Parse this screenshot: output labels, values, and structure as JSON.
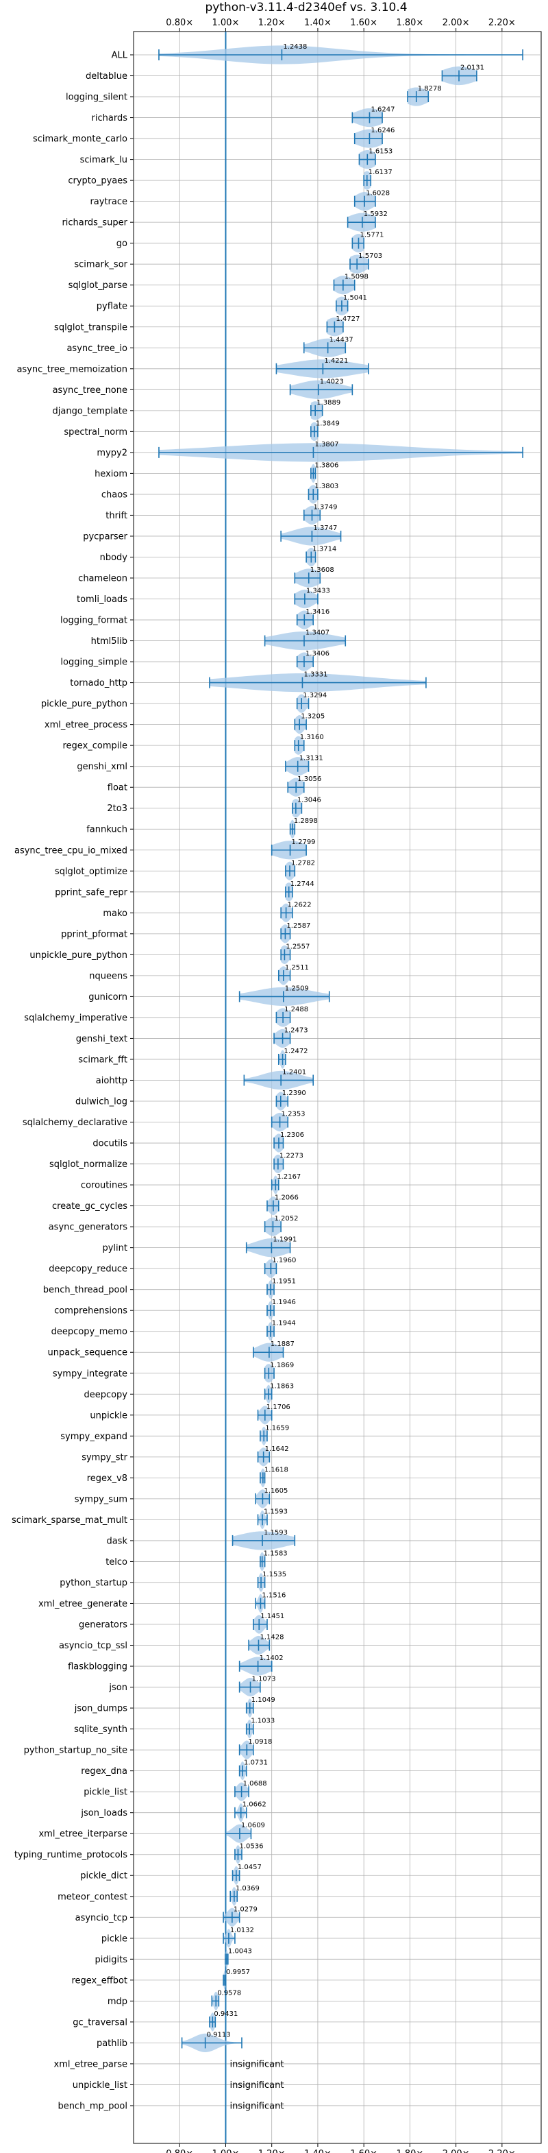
{
  "chart_data": {
    "type": "violin",
    "title": "python-v3.11.4-d2340ef vs. 3.10.4",
    "xlabel": "",
    "ylabel": "",
    "xlim": [
      0.6,
      2.37
    ],
    "x_ticks": [
      0.8,
      1.0,
      1.2,
      1.4,
      1.6,
      1.8,
      2.0,
      2.2
    ],
    "x_tick_labels": [
      "0.80×",
      "1.00×",
      "1.20×",
      "1.40×",
      "1.60×",
      "1.80×",
      "2.00×",
      "2.20×"
    ],
    "reference_line": 1.0,
    "grid": true,
    "colors": {
      "violin": "#a6c8e8",
      "whisker": "#1f77b4",
      "refline": "#1f77b4",
      "grid": "#b0b0b0"
    },
    "insignificant_text": "insignificant",
    "benchmarks": [
      {
        "name": "ALL",
        "value": 1.2438,
        "label": "1.2438",
        "min": 0.71,
        "max": 2.29,
        "spread": 0.25
      },
      {
        "name": "deltablue",
        "value": 2.0131,
        "label": "2.0131",
        "min": 1.94,
        "max": 2.09,
        "spread": 0.07
      },
      {
        "name": "logging_silent",
        "value": 1.8278,
        "label": "1.8278",
        "min": 1.79,
        "max": 1.88,
        "spread": 0.05
      },
      {
        "name": "richards",
        "value": 1.6247,
        "label": "1.6247",
        "min": 1.55,
        "max": 1.68,
        "spread": 0.06
      },
      {
        "name": "scimark_monte_carlo",
        "value": 1.6246,
        "label": "1.6246",
        "min": 1.56,
        "max": 1.68,
        "spread": 0.06
      },
      {
        "name": "scimark_lu",
        "value": 1.6153,
        "label": "1.6153",
        "min": 1.58,
        "max": 1.65,
        "spread": 0.04
      },
      {
        "name": "crypto_pyaes",
        "value": 1.6137,
        "label": "1.6137",
        "min": 1.6,
        "max": 1.63,
        "spread": 0.02
      },
      {
        "name": "raytrace",
        "value": 1.6028,
        "label": "1.6028",
        "min": 1.56,
        "max": 1.65,
        "spread": 0.04
      },
      {
        "name": "richards_super",
        "value": 1.5932,
        "label": "1.5932",
        "min": 1.53,
        "max": 1.65,
        "spread": 0.06
      },
      {
        "name": "go",
        "value": 1.5771,
        "label": "1.5771",
        "min": 1.55,
        "max": 1.6,
        "spread": 0.03
      },
      {
        "name": "scimark_sor",
        "value": 1.5703,
        "label": "1.5703",
        "min": 1.54,
        "max": 1.62,
        "spread": 0.04
      },
      {
        "name": "sqlglot_parse",
        "value": 1.5098,
        "label": "1.5098",
        "min": 1.47,
        "max": 1.56,
        "spread": 0.04
      },
      {
        "name": "pyflate",
        "value": 1.5041,
        "label": "1.5041",
        "min": 1.48,
        "max": 1.53,
        "spread": 0.03
      },
      {
        "name": "sqlglot_transpile",
        "value": 1.4727,
        "label": "1.4727",
        "min": 1.44,
        "max": 1.51,
        "spread": 0.04
      },
      {
        "name": "async_tree_io",
        "value": 1.4437,
        "label": "1.4437",
        "min": 1.34,
        "max": 1.52,
        "spread": 0.07
      },
      {
        "name": "async_tree_memoization",
        "value": 1.4221,
        "label": "1.4221",
        "min": 1.22,
        "max": 1.62,
        "spread": 0.14
      },
      {
        "name": "async_tree_none",
        "value": 1.4023,
        "label": "1.4023",
        "min": 1.28,
        "max": 1.55,
        "spread": 0.09
      },
      {
        "name": "django_template",
        "value": 1.3889,
        "label": "1.3889",
        "min": 1.37,
        "max": 1.42,
        "spread": 0.03
      },
      {
        "name": "spectral_norm",
        "value": 1.3849,
        "label": "1.3849",
        "min": 1.37,
        "max": 1.4,
        "spread": 0.02
      },
      {
        "name": "mypy2",
        "value": 1.3807,
        "label": "1.3807",
        "min": 0.71,
        "max": 2.29,
        "spread": 0.4
      },
      {
        "name": "hexiom",
        "value": 1.3806,
        "label": "1.3806",
        "min": 1.37,
        "max": 1.39,
        "spread": 0.01
      },
      {
        "name": "chaos",
        "value": 1.3803,
        "label": "1.3803",
        "min": 1.36,
        "max": 1.4,
        "spread": 0.02
      },
      {
        "name": "thrift",
        "value": 1.3749,
        "label": "1.3749",
        "min": 1.34,
        "max": 1.41,
        "spread": 0.03
      },
      {
        "name": "pycparser",
        "value": 1.3747,
        "label": "1.3747",
        "min": 1.24,
        "max": 1.5,
        "spread": 0.08
      },
      {
        "name": "nbody",
        "value": 1.3714,
        "label": "1.3714",
        "min": 1.35,
        "max": 1.39,
        "spread": 0.02
      },
      {
        "name": "chameleon",
        "value": 1.3608,
        "label": "1.3608",
        "min": 1.3,
        "max": 1.41,
        "spread": 0.05
      },
      {
        "name": "tomli_loads",
        "value": 1.3433,
        "label": "1.3433",
        "min": 1.3,
        "max": 1.4,
        "spread": 0.04
      },
      {
        "name": "logging_format",
        "value": 1.3416,
        "label": "1.3416",
        "min": 1.31,
        "max": 1.38,
        "spread": 0.03
      },
      {
        "name": "html5lib",
        "value": 1.3407,
        "label": "1.3407",
        "min": 1.17,
        "max": 1.52,
        "spread": 0.12
      },
      {
        "name": "logging_simple",
        "value": 1.3406,
        "label": "1.3406",
        "min": 1.31,
        "max": 1.38,
        "spread": 0.03
      },
      {
        "name": "tornado_http",
        "value": 1.3331,
        "label": "1.3331",
        "min": 0.93,
        "max": 1.87,
        "spread": 0.28
      },
      {
        "name": "pickle_pure_python",
        "value": 1.3294,
        "label": "1.3294",
        "min": 1.31,
        "max": 1.36,
        "spread": 0.02
      },
      {
        "name": "xml_etree_process",
        "value": 1.3205,
        "label": "1.3205",
        "min": 1.3,
        "max": 1.35,
        "spread": 0.02
      },
      {
        "name": "regex_compile",
        "value": 1.316,
        "label": "1.3160",
        "min": 1.3,
        "max": 1.34,
        "spread": 0.02
      },
      {
        "name": "genshi_xml",
        "value": 1.3131,
        "label": "1.3131",
        "min": 1.26,
        "max": 1.36,
        "spread": 0.04
      },
      {
        "name": "float",
        "value": 1.3056,
        "label": "1.3056",
        "min": 1.27,
        "max": 1.34,
        "spread": 0.03
      },
      {
        "name": "2to3",
        "value": 1.3046,
        "label": "1.3046",
        "min": 1.29,
        "max": 1.33,
        "spread": 0.02
      },
      {
        "name": "fannkuch",
        "value": 1.2898,
        "label": "1.2898",
        "min": 1.28,
        "max": 1.3,
        "spread": 0.01
      },
      {
        "name": "async_tree_cpu_io_mixed",
        "value": 1.2799,
        "label": "1.2799",
        "min": 1.2,
        "max": 1.35,
        "spread": 0.07
      },
      {
        "name": "sqlglot_optimize",
        "value": 1.2782,
        "label": "1.2782",
        "min": 1.26,
        "max": 1.3,
        "spread": 0.02
      },
      {
        "name": "pprint_safe_repr",
        "value": 1.2744,
        "label": "1.2744",
        "min": 1.26,
        "max": 1.29,
        "spread": 0.02
      },
      {
        "name": "mako",
        "value": 1.2622,
        "label": "1.2622",
        "min": 1.24,
        "max": 1.29,
        "spread": 0.02
      },
      {
        "name": "pprint_pformat",
        "value": 1.2587,
        "label": "1.2587",
        "min": 1.24,
        "max": 1.28,
        "spread": 0.02
      },
      {
        "name": "unpickle_pure_python",
        "value": 1.2557,
        "label": "1.2557",
        "min": 1.24,
        "max": 1.28,
        "spread": 0.02
      },
      {
        "name": "nqueens",
        "value": 1.2511,
        "label": "1.2511",
        "min": 1.23,
        "max": 1.28,
        "spread": 0.02
      },
      {
        "name": "gunicorn",
        "value": 1.2509,
        "label": "1.2509",
        "min": 1.06,
        "max": 1.45,
        "spread": 0.12
      },
      {
        "name": "sqlalchemy_imperative",
        "value": 1.2488,
        "label": "1.2488",
        "min": 1.22,
        "max": 1.28,
        "spread": 0.03
      },
      {
        "name": "genshi_text",
        "value": 1.2473,
        "label": "1.2473",
        "min": 1.21,
        "max": 1.28,
        "spread": 0.03
      },
      {
        "name": "scimark_fft",
        "value": 1.2472,
        "label": "1.2472",
        "min": 1.23,
        "max": 1.26,
        "spread": 0.01
      },
      {
        "name": "aiohttp",
        "value": 1.2401,
        "label": "1.2401",
        "min": 1.08,
        "max": 1.38,
        "spread": 0.08
      },
      {
        "name": "dulwich_log",
        "value": 1.239,
        "label": "1.2390",
        "min": 1.22,
        "max": 1.27,
        "spread": 0.02
      },
      {
        "name": "sqlalchemy_declarative",
        "value": 1.2353,
        "label": "1.2353",
        "min": 1.2,
        "max": 1.27,
        "spread": 0.03
      },
      {
        "name": "docutils",
        "value": 1.2306,
        "label": "1.2306",
        "min": 1.21,
        "max": 1.25,
        "spread": 0.02
      },
      {
        "name": "sqlglot_normalize",
        "value": 1.2273,
        "label": "1.2273",
        "min": 1.21,
        "max": 1.25,
        "spread": 0.02
      },
      {
        "name": "coroutines",
        "value": 1.2167,
        "label": "1.2167",
        "min": 1.2,
        "max": 1.23,
        "spread": 0.01
      },
      {
        "name": "create_gc_cycles",
        "value": 1.2066,
        "label": "1.2066",
        "min": 1.18,
        "max": 1.23,
        "spread": 0.02
      },
      {
        "name": "async_generators",
        "value": 1.2052,
        "label": "1.2052",
        "min": 1.17,
        "max": 1.24,
        "spread": 0.03
      },
      {
        "name": "pylint",
        "value": 1.1991,
        "label": "1.1991",
        "min": 1.09,
        "max": 1.28,
        "spread": 0.07
      },
      {
        "name": "deepcopy_reduce",
        "value": 1.196,
        "label": "1.1960",
        "min": 1.17,
        "max": 1.22,
        "spread": 0.02
      },
      {
        "name": "bench_thread_pool",
        "value": 1.1951,
        "label": "1.1951",
        "min": 1.18,
        "max": 1.21,
        "spread": 0.01
      },
      {
        "name": "comprehensions",
        "value": 1.1946,
        "label": "1.1946",
        "min": 1.18,
        "max": 1.21,
        "spread": 0.01
      },
      {
        "name": "deepcopy_memo",
        "value": 1.1944,
        "label": "1.1944",
        "min": 1.18,
        "max": 1.21,
        "spread": 0.01
      },
      {
        "name": "unpack_sequence",
        "value": 1.1887,
        "label": "1.1887",
        "min": 1.12,
        "max": 1.25,
        "spread": 0.05
      },
      {
        "name": "sympy_integrate",
        "value": 1.1869,
        "label": "1.1869",
        "min": 1.17,
        "max": 1.21,
        "spread": 0.02
      },
      {
        "name": "deepcopy",
        "value": 1.1863,
        "label": "1.1863",
        "min": 1.17,
        "max": 1.2,
        "spread": 0.01
      },
      {
        "name": "unpickle",
        "value": 1.1706,
        "label": "1.1706",
        "min": 1.14,
        "max": 1.2,
        "spread": 0.02
      },
      {
        "name": "sympy_expand",
        "value": 1.1659,
        "label": "1.1659",
        "min": 1.15,
        "max": 1.18,
        "spread": 0.01
      },
      {
        "name": "sympy_str",
        "value": 1.1642,
        "label": "1.1642",
        "min": 1.14,
        "max": 1.19,
        "spread": 0.02
      },
      {
        "name": "regex_v8",
        "value": 1.1618,
        "label": "1.1618",
        "min": 1.15,
        "max": 1.17,
        "spread": 0.01
      },
      {
        "name": "sympy_sum",
        "value": 1.1605,
        "label": "1.1605",
        "min": 1.13,
        "max": 1.19,
        "spread": 0.02
      },
      {
        "name": "scimark_sparse_mat_mult",
        "value": 1.1593,
        "label": "1.1593",
        "min": 1.14,
        "max": 1.18,
        "spread": 0.01
      },
      {
        "name": "dask",
        "value": 1.1593,
        "label": "1.1593",
        "min": 1.03,
        "max": 1.3,
        "spread": 0.1
      },
      {
        "name": "telco",
        "value": 1.1583,
        "label": "1.1583",
        "min": 1.15,
        "max": 1.17,
        "spread": 0.01
      },
      {
        "name": "python_startup",
        "value": 1.1535,
        "label": "1.1535",
        "min": 1.14,
        "max": 1.17,
        "spread": 0.01
      },
      {
        "name": "xml_etree_generate",
        "value": 1.1516,
        "label": "1.1516",
        "min": 1.13,
        "max": 1.17,
        "spread": 0.01
      },
      {
        "name": "generators",
        "value": 1.1451,
        "label": "1.1451",
        "min": 1.12,
        "max": 1.18,
        "spread": 0.02
      },
      {
        "name": "asyncio_tcp_ssl",
        "value": 1.1428,
        "label": "1.1428",
        "min": 1.1,
        "max": 1.19,
        "spread": 0.03
      },
      {
        "name": "flaskblogging",
        "value": 1.1402,
        "label": "1.1402",
        "min": 1.06,
        "max": 1.2,
        "spread": 0.05
      },
      {
        "name": "json",
        "value": 1.1073,
        "label": "1.1073",
        "min": 1.06,
        "max": 1.15,
        "spread": 0.03
      },
      {
        "name": "json_dumps",
        "value": 1.1049,
        "label": "1.1049",
        "min": 1.09,
        "max": 1.12,
        "spread": 0.01
      },
      {
        "name": "sqlite_synth",
        "value": 1.1033,
        "label": "1.1033",
        "min": 1.09,
        "max": 1.12,
        "spread": 0.01
      },
      {
        "name": "python_startup_no_site",
        "value": 1.0918,
        "label": "1.0918",
        "min": 1.06,
        "max": 1.12,
        "spread": 0.02
      },
      {
        "name": "regex_dna",
        "value": 1.0731,
        "label": "1.0731",
        "min": 1.06,
        "max": 1.09,
        "spread": 0.01
      },
      {
        "name": "pickle_list",
        "value": 1.0688,
        "label": "1.0688",
        "min": 1.04,
        "max": 1.1,
        "spread": 0.02
      },
      {
        "name": "json_loads",
        "value": 1.0662,
        "label": "1.0662",
        "min": 1.04,
        "max": 1.09,
        "spread": 0.01
      },
      {
        "name": "xml_etree_iterparse",
        "value": 1.0609,
        "label": "1.0609",
        "min": 1.0,
        "max": 1.11,
        "spread": 0.03
      },
      {
        "name": "typing_runtime_protocols",
        "value": 1.0536,
        "label": "1.0536",
        "min": 1.04,
        "max": 1.07,
        "spread": 0.01
      },
      {
        "name": "pickle_dict",
        "value": 1.0457,
        "label": "1.0457",
        "min": 1.03,
        "max": 1.06,
        "spread": 0.01
      },
      {
        "name": "meteor_contest",
        "value": 1.0369,
        "label": "1.0369",
        "min": 1.02,
        "max": 1.05,
        "spread": 0.01
      },
      {
        "name": "asyncio_tcp",
        "value": 1.0279,
        "label": "1.0279",
        "min": 0.99,
        "max": 1.06,
        "spread": 0.02
      },
      {
        "name": "pickle",
        "value": 1.0132,
        "label": "1.0132",
        "min": 0.99,
        "max": 1.04,
        "spread": 0.01
      },
      {
        "name": "pidigits",
        "value": 1.0043,
        "label": "1.0043",
        "min": 0.998,
        "max": 1.01,
        "spread": 0.005
      },
      {
        "name": "regex_effbot",
        "value": 0.9957,
        "label": "0.9957",
        "min": 0.99,
        "max": 1.0,
        "spread": 0.005
      },
      {
        "name": "mdp",
        "value": 0.9578,
        "label": "0.9578",
        "min": 0.94,
        "max": 0.97,
        "spread": 0.01
      },
      {
        "name": "gc_traversal",
        "value": 0.9431,
        "label": "0.9431",
        "min": 0.93,
        "max": 0.955,
        "spread": 0.01
      },
      {
        "name": "pathlib",
        "value": 0.9113,
        "label": "0.9113",
        "min": 0.81,
        "max": 1.07,
        "spread": 0.05
      },
      {
        "name": "xml_etree_parse",
        "insignificant": true
      },
      {
        "name": "unpickle_list",
        "insignificant": true
      },
      {
        "name": "bench_mp_pool",
        "insignificant": true
      }
    ]
  }
}
